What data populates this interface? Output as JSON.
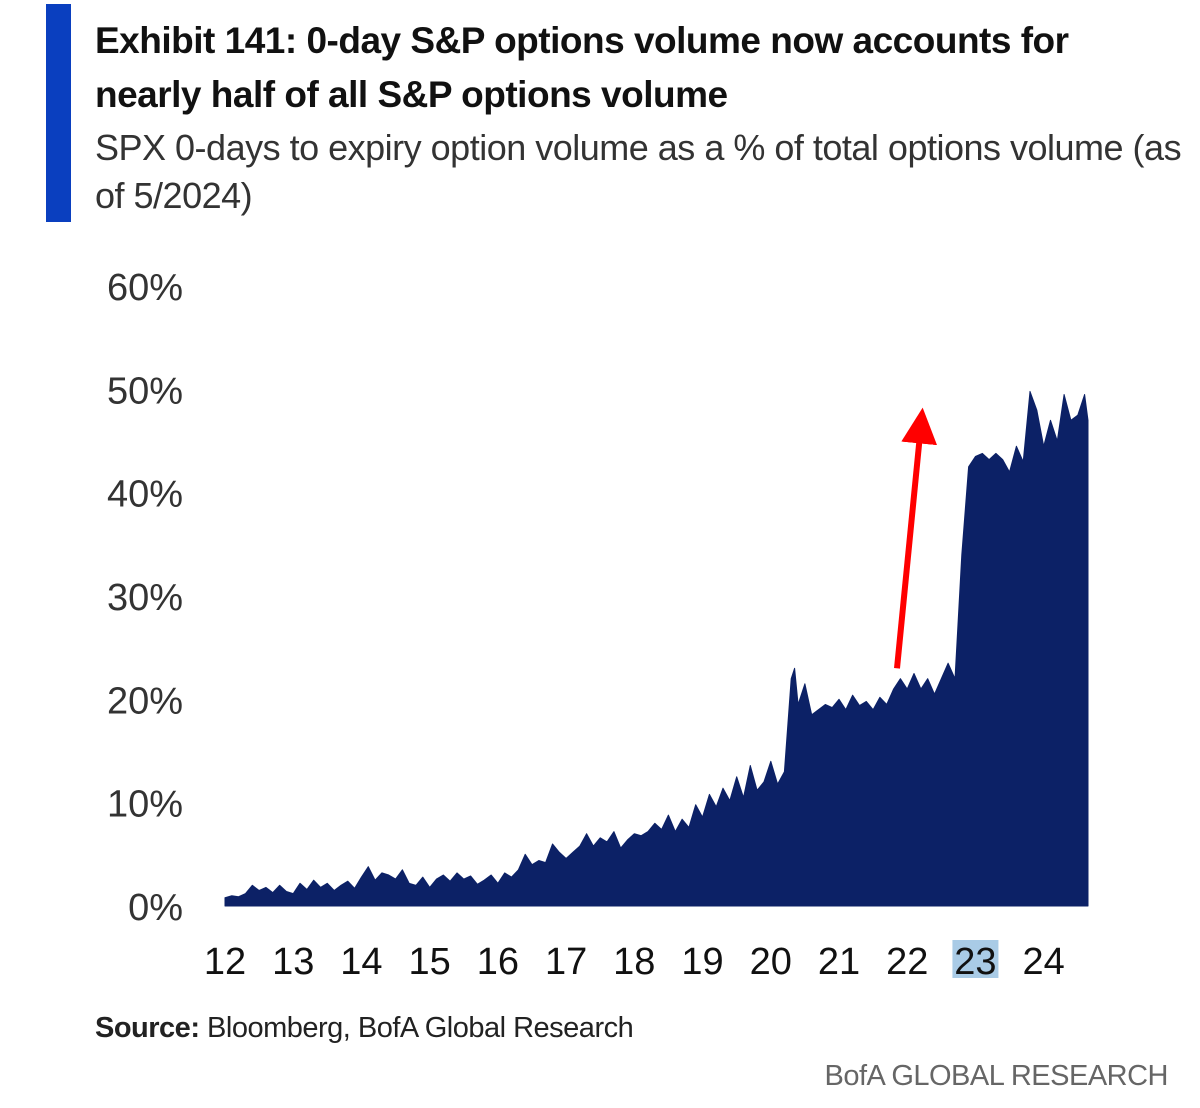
{
  "header": {
    "title": "Exhibit 141: 0-day S&P options volume now accounts for nearly half of all S&P options volume",
    "subtitle": "SPX 0-days to expiry option volume as a % of total options volume (as of 5/2024)"
  },
  "colors": {
    "accent": "#0a3fbf",
    "area_fill": "#0c2166",
    "arrow": "#ff0000",
    "highlight_tick": "#a9cbe6"
  },
  "chart_data": {
    "type": "area",
    "title": "",
    "xlabel": "",
    "ylabel": "",
    "ylim": [
      0,
      60
    ],
    "yticks": [
      0,
      10,
      20,
      30,
      40,
      50,
      60
    ],
    "ytick_labels": [
      "0%",
      "10%",
      "20%",
      "30%",
      "40%",
      "50%",
      "60%"
    ],
    "xlim": [
      2012.0,
      2024.65
    ],
    "xtick_labels": [
      "12",
      "13",
      "14",
      "15",
      "16",
      "17",
      "18",
      "19",
      "20",
      "21",
      "22",
      "23",
      "24"
    ],
    "highlighted_xtick": "23",
    "grid": false,
    "legend": "none",
    "series": [
      {
        "x": [
          2012.0,
          2012.1,
          2012.2,
          2012.3,
          2012.4,
          2012.5,
          2012.6,
          2012.7,
          2012.8,
          2012.9,
          2013.0,
          2013.1,
          2013.2,
          2013.3,
          2013.4,
          2013.5,
          2013.6,
          2013.7,
          2013.8,
          2013.9,
          2014.0,
          2014.1,
          2014.2,
          2014.3,
          2014.4,
          2014.5,
          2014.6,
          2014.7,
          2014.8,
          2014.9,
          2015.0,
          2015.1,
          2015.2,
          2015.3,
          2015.4,
          2015.5,
          2015.6,
          2015.7,
          2015.8,
          2015.9,
          2016.0,
          2016.1,
          2016.2,
          2016.3,
          2016.4,
          2016.5,
          2016.6,
          2016.7,
          2016.8,
          2016.9,
          2017.0,
          2017.1,
          2017.2,
          2017.3,
          2017.4,
          2017.5,
          2017.6,
          2017.7,
          2017.8,
          2017.9,
          2018.0,
          2018.1,
          2018.2,
          2018.3,
          2018.4,
          2018.5,
          2018.6,
          2018.7,
          2018.8,
          2018.9,
          2019.0,
          2019.1,
          2019.2,
          2019.3,
          2019.4,
          2019.5,
          2019.6,
          2019.7,
          2019.8,
          2019.9,
          2020.0,
          2020.1,
          2020.2,
          2020.3,
          2020.35,
          2020.4,
          2020.5,
          2020.6,
          2020.7,
          2020.8,
          2020.9,
          2021.0,
          2021.1,
          2021.2,
          2021.3,
          2021.4,
          2021.5,
          2021.6,
          2021.7,
          2021.8,
          2021.9,
          2022.0,
          2022.1,
          2022.2,
          2022.3,
          2022.4,
          2022.5,
          2022.6,
          2022.7,
          2022.8,
          2022.9,
          2023.0,
          2023.1,
          2023.2,
          2023.3,
          2023.4,
          2023.5,
          2023.6,
          2023.7,
          2023.8,
          2023.9,
          2024.0,
          2024.1,
          2024.2,
          2024.3,
          2024.4,
          2024.5,
          2024.6,
          2024.65
        ],
        "values": [
          0.8,
          1.0,
          0.9,
          1.2,
          2.0,
          1.5,
          1.8,
          1.3,
          2.0,
          1.4,
          1.2,
          2.2,
          1.6,
          2.5,
          1.8,
          2.2,
          1.5,
          2.0,
          2.4,
          1.7,
          2.8,
          3.8,
          2.5,
          3.2,
          3.0,
          2.6,
          3.5,
          2.2,
          2.0,
          2.8,
          1.8,
          2.6,
          3.0,
          2.4,
          3.2,
          2.6,
          2.9,
          2.1,
          2.5,
          3.0,
          2.2,
          3.2,
          2.8,
          3.5,
          5.0,
          4.0,
          4.4,
          4.2,
          6.0,
          5.2,
          4.6,
          5.2,
          5.8,
          7.0,
          5.8,
          6.6,
          6.2,
          7.2,
          5.6,
          6.4,
          7.0,
          6.8,
          7.2,
          8.0,
          7.4,
          8.8,
          7.2,
          8.4,
          7.6,
          9.8,
          8.6,
          10.8,
          9.6,
          11.4,
          10.2,
          12.5,
          10.5,
          13.6,
          11.2,
          12.0,
          14.0,
          11.8,
          13.0,
          22.0,
          23.0,
          19.5,
          21.5,
          18.5,
          19.0,
          19.5,
          19.2,
          20.0,
          19.0,
          20.4,
          19.4,
          19.8,
          19.0,
          20.2,
          19.5,
          21.0,
          22.0,
          21.0,
          22.5,
          21.0,
          22.0,
          20.5,
          22.0,
          23.5,
          22.0,
          34.0,
          42.5,
          43.5,
          43.8,
          43.2,
          43.8,
          43.2,
          42.0,
          44.5,
          43.0,
          49.8,
          48.0,
          44.5,
          47.0,
          45.0,
          49.5,
          47.0,
          47.5,
          49.5,
          47.0
        ]
      }
    ],
    "annotations": [
      {
        "type": "arrow",
        "from": [
          2021.85,
          23.0
        ],
        "to": [
          2022.2,
          46.5
        ]
      }
    ]
  },
  "footer": {
    "source_label": "Source:",
    "source_text": " Bloomberg, BofA Global Research",
    "brand": "BofA GLOBAL RESEARCH"
  }
}
